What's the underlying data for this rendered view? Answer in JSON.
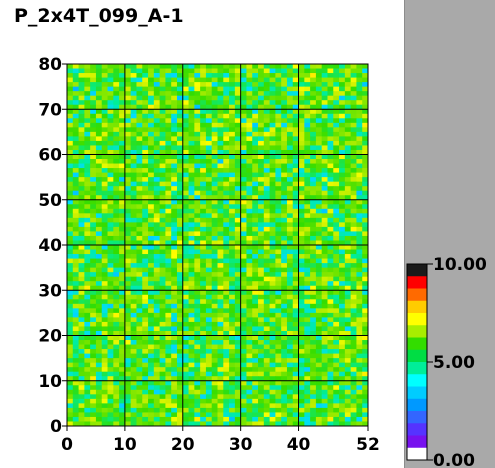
{
  "chart_data": {
    "type": "heatmap",
    "title": "P_2x4T_099_A-1",
    "x_ticks": [
      0,
      10,
      20,
      30,
      40,
      52
    ],
    "y_ticks": [
      0,
      10,
      20,
      30,
      40,
      50,
      60,
      70,
      80
    ],
    "xlim": [
      0,
      52
    ],
    "ylim": [
      0,
      80
    ],
    "grid": true,
    "value_range": [
      0.0,
      10.0
    ],
    "typical_value": 5.2,
    "value_spread": 0.8,
    "colorbar": {
      "labels": [
        "10.00",
        "5.00",
        "0.00"
      ],
      "values": [
        10.0,
        5.0,
        0.0
      ],
      "colors": [
        "#1a1a1a",
        "#ff0000",
        "#ff6a00",
        "#ffcc00",
        "#ffff00",
        "#a8ee00",
        "#33dd00",
        "#00dd44",
        "#00ee99",
        "#00ffff",
        "#00ccff",
        "#0099ff",
        "#3366ff",
        "#5533ff",
        "#7711ee",
        "#ffffff"
      ]
    }
  }
}
